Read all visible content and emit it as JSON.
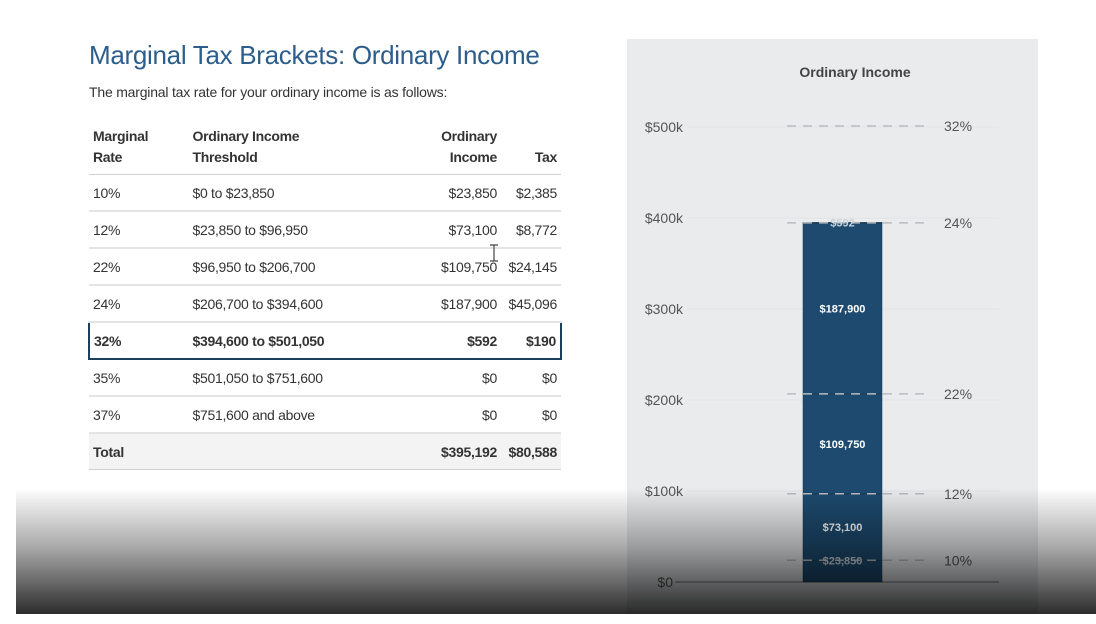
{
  "title": "Marginal Tax Brackets: Ordinary Income",
  "subtitle": "The marginal tax rate for your ordinary income is as follows:",
  "table": {
    "headers": {
      "rate": [
        "Marginal",
        "Rate"
      ],
      "threshold": [
        "Ordinary Income",
        "Threshold"
      ],
      "income": [
        "Ordinary",
        "Income"
      ],
      "tax": "Tax"
    },
    "rows": [
      {
        "rate": "10%",
        "threshold": "$0 to $23,850",
        "income": "$23,850",
        "tax": "$2,385"
      },
      {
        "rate": "12%",
        "threshold": "$23,850 to $96,950",
        "income": "$73,100",
        "tax": "$8,772"
      },
      {
        "rate": "22%",
        "threshold": "$96,950 to $206,700",
        "income": "$109,750",
        "tax": "$24,145"
      },
      {
        "rate": "24%",
        "threshold": "$206,700 to $394,600",
        "income": "$187,900",
        "tax": "$45,096"
      },
      {
        "rate": "32%",
        "threshold": "$394,600 to $501,050",
        "income": "$592",
        "tax": "$190"
      },
      {
        "rate": "35%",
        "threshold": "$501,050 to $751,600",
        "income": "$0",
        "tax": "$0"
      },
      {
        "rate": "37%",
        "threshold": "$751,600 and above",
        "income": "$0",
        "tax": "$0"
      }
    ],
    "total": {
      "label": "Total",
      "income": "$395,192",
      "tax": "$80,588"
    },
    "highlighted_row": 4
  },
  "chart_data": {
    "type": "bar",
    "title": "Ordinary Income",
    "ylim": [
      0,
      520000
    ],
    "y_ticks": [
      {
        "value": 0,
        "label": "$0"
      },
      {
        "value": 100000,
        "label": "$100k"
      },
      {
        "value": 200000,
        "label": "$200k"
      },
      {
        "value": 300000,
        "label": "$300k"
      },
      {
        "value": 400000,
        "label": "$400k"
      },
      {
        "value": 500000,
        "label": "$500k"
      }
    ],
    "segments": [
      {
        "start": 0,
        "end": 23850,
        "label": "$23,850"
      },
      {
        "start": 23850,
        "end": 96950,
        "label": "$73,100"
      },
      {
        "start": 96950,
        "end": 206700,
        "label": "$109,750"
      },
      {
        "start": 206700,
        "end": 394600,
        "label": "$187,900"
      },
      {
        "start": 394600,
        "end": 395192,
        "label": "$592"
      }
    ],
    "bracket_lines": [
      {
        "value": 23850,
        "label": "10%"
      },
      {
        "value": 96950,
        "label": "12%"
      },
      {
        "value": 206700,
        "label": "22%"
      },
      {
        "value": 394600,
        "label": "24%"
      },
      {
        "value": 501050,
        "label": "32%"
      }
    ],
    "colors": {
      "bar": "#1d4a6e",
      "bar_border": "#15364f",
      "panel": "#e9ebed",
      "dash": "#b8bcc0",
      "text": "#555555"
    }
  }
}
